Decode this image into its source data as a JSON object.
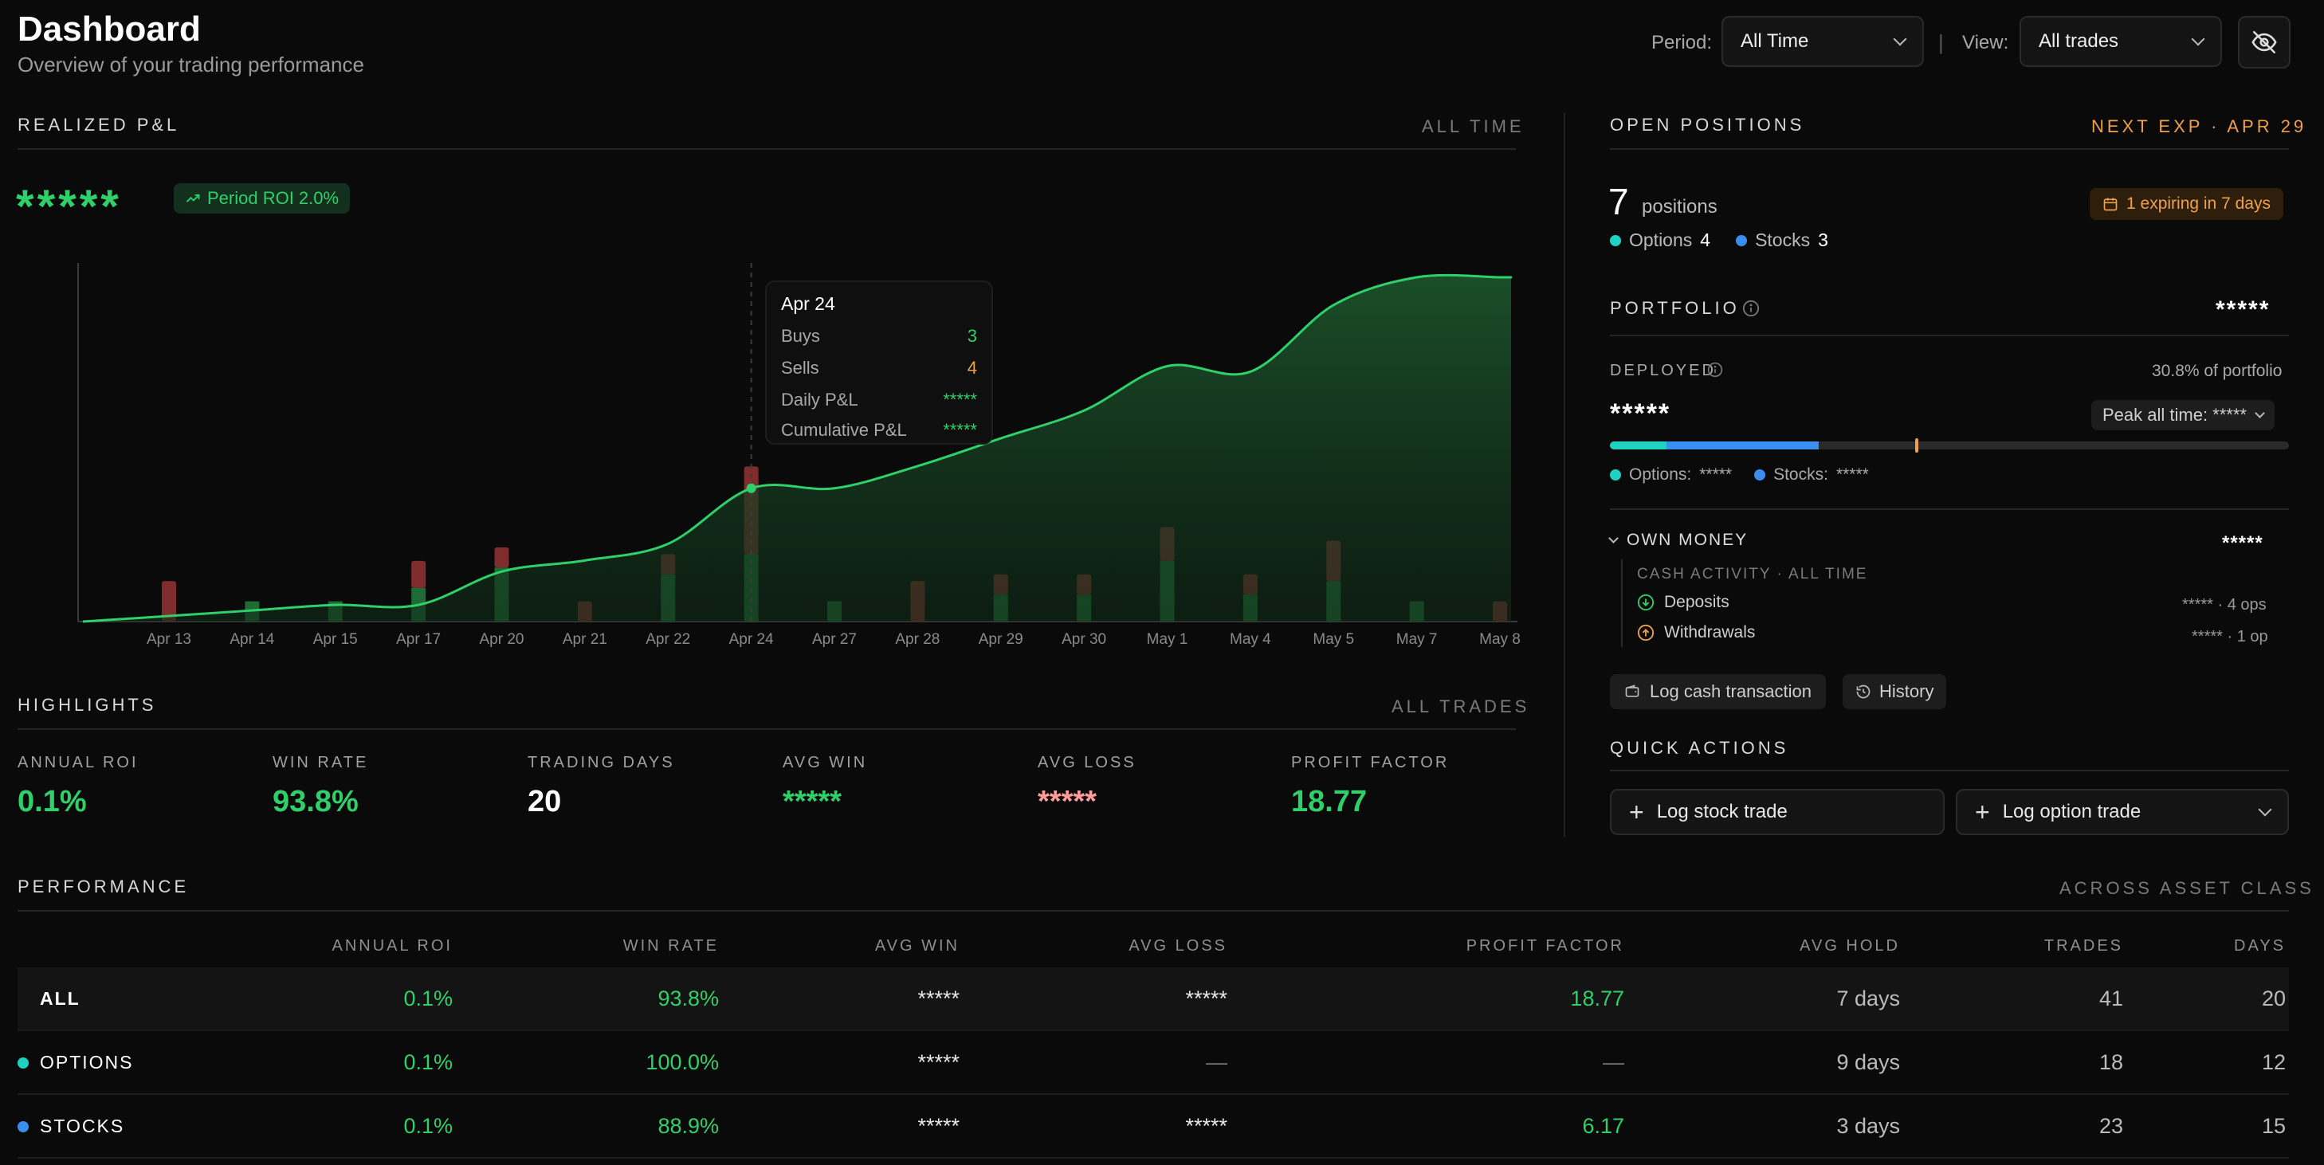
{
  "header": {
    "title": "Dashboard",
    "subtitle": "Overview of your trading performance",
    "period_label": "Period:",
    "period_value": "All Time",
    "separator": "|",
    "view_label": "View:",
    "view_value": "All trades"
  },
  "pnl": {
    "title": "REALIZED P&L",
    "scope": "ALL TIME",
    "value": "*****",
    "roi_badge": "Period ROI 2.0%"
  },
  "tooltip": {
    "date": "Apr 24",
    "buys_label": "Buys",
    "buys_value": "3",
    "sells_label": "Sells",
    "sells_value": "4",
    "daily_label": "Daily P&L",
    "daily_value": "*****",
    "cum_label": "Cumulative P&L",
    "cum_value": "*****"
  },
  "chart_data": {
    "type": "area",
    "categories": [
      "Apr 13",
      "Apr 14",
      "Apr 15",
      "Apr 17",
      "Apr 20",
      "Apr 21",
      "Apr 22",
      "Apr 24",
      "Apr 27",
      "Apr 28",
      "Apr 29",
      "Apr 30",
      "May 1",
      "May 4",
      "May 5",
      "May 7",
      "May 8"
    ],
    "series": [
      {
        "values": [
          0.01,
          0.02,
          0.03,
          0.03,
          0.09,
          0.11,
          0.14,
          0.24,
          0.24,
          0.28,
          0.33,
          0.38,
          0.46,
          0.45,
          0.57,
          0.62,
          0.62
        ]
      }
    ],
    "bars_buys": [
      0,
      0.03,
      0.03,
      0.05,
      0.08,
      0,
      0.07,
      0.1,
      0.03,
      0,
      0.04,
      0.04,
      0.09,
      0.04,
      0.06,
      0.03,
      0
    ],
    "bars_sells": [
      0.06,
      0,
      0,
      0.04,
      0.03,
      0.03,
      0.03,
      0.13,
      0,
      0.06,
      0.03,
      0.03,
      0.05,
      0.03,
      0.06,
      0,
      0.03
    ],
    "tooltip_index": 7,
    "grid": false
  },
  "highlights": {
    "title": "HIGHLIGHTS",
    "scope": "ALL TRADES",
    "items": [
      {
        "label": "ANNUAL ROI",
        "value": "0.1%"
      },
      {
        "label": "WIN RATE",
        "value": "93.8%"
      },
      {
        "label": "TRADING DAYS",
        "value": "20"
      },
      {
        "label": "AVG WIN",
        "value": "*****"
      },
      {
        "label": "AVG LOSS",
        "value": "*****"
      },
      {
        "label": "PROFIT FACTOR",
        "value": "18.77"
      }
    ]
  },
  "positions": {
    "title": "OPEN POSITIONS",
    "next_exp": "NEXT EXP · APR 29",
    "count": "7",
    "count_label": "positions",
    "options_label": "Options",
    "options_count": "4",
    "stocks_label": "Stocks",
    "stocks_count": "3",
    "expiring": "1 expiring in 7 days"
  },
  "portfolio": {
    "title": "PORTFOLIO",
    "value": "*****",
    "deployed_label": "DEPLOYED",
    "deployed_pct": "30.8% of portfolio",
    "deployed_value": "*****",
    "peak": "Peak all time: *****",
    "options_share": 0.083,
    "stocks_share": 0.225,
    "peak_marker": 0.45,
    "options_label": "Options:",
    "options_value": "*****",
    "stocks_label": "Stocks:",
    "stocks_value": "*****"
  },
  "own_money": {
    "title": "OWN MONEY",
    "value": "*****",
    "cash_label": "CASH ACTIVITY · ALL TIME",
    "deposits_label": "Deposits",
    "deposits_value": "***** · 4 ops",
    "withdrawals_label": "Withdrawals",
    "withdrawals_value": "***** · 1 op",
    "log_cash": "Log cash transaction",
    "history": "History"
  },
  "quick": {
    "title": "QUICK ACTIONS",
    "log_stock": "Log stock trade",
    "log_option": "Log option trade"
  },
  "performance": {
    "title": "PERFORMANCE",
    "scope": "ACROSS ASSET CLASS",
    "columns": [
      "ANNUAL ROI",
      "WIN RATE",
      "AVG WIN",
      "AVG LOSS",
      "PROFIT FACTOR",
      "AVG HOLD",
      "TRADES",
      "DAYS"
    ],
    "rows": [
      {
        "name": "ALL",
        "roi": "0.1%",
        "win": "93.8%",
        "avg_win": "*****",
        "avg_loss": "*****",
        "pf": "18.77",
        "hold": "7 days",
        "trades": "41",
        "days": "20"
      },
      {
        "name": "OPTIONS",
        "roi": "0.1%",
        "win": "100.0%",
        "avg_win": "*****",
        "avg_loss": "—",
        "pf": "—",
        "hold": "9 days",
        "trades": "18",
        "days": "12"
      },
      {
        "name": "STOCKS",
        "roi": "0.1%",
        "win": "88.9%",
        "avg_win": "*****",
        "avg_loss": "*****",
        "pf": "6.17",
        "hold": "3 days",
        "trades": "23",
        "days": "15"
      }
    ]
  },
  "colors": {
    "green": "#2fd06a",
    "teal": "#1fd1c1",
    "blue": "#3a8ef0",
    "orange": "#f0a04b",
    "red": "#8a2f2f"
  }
}
